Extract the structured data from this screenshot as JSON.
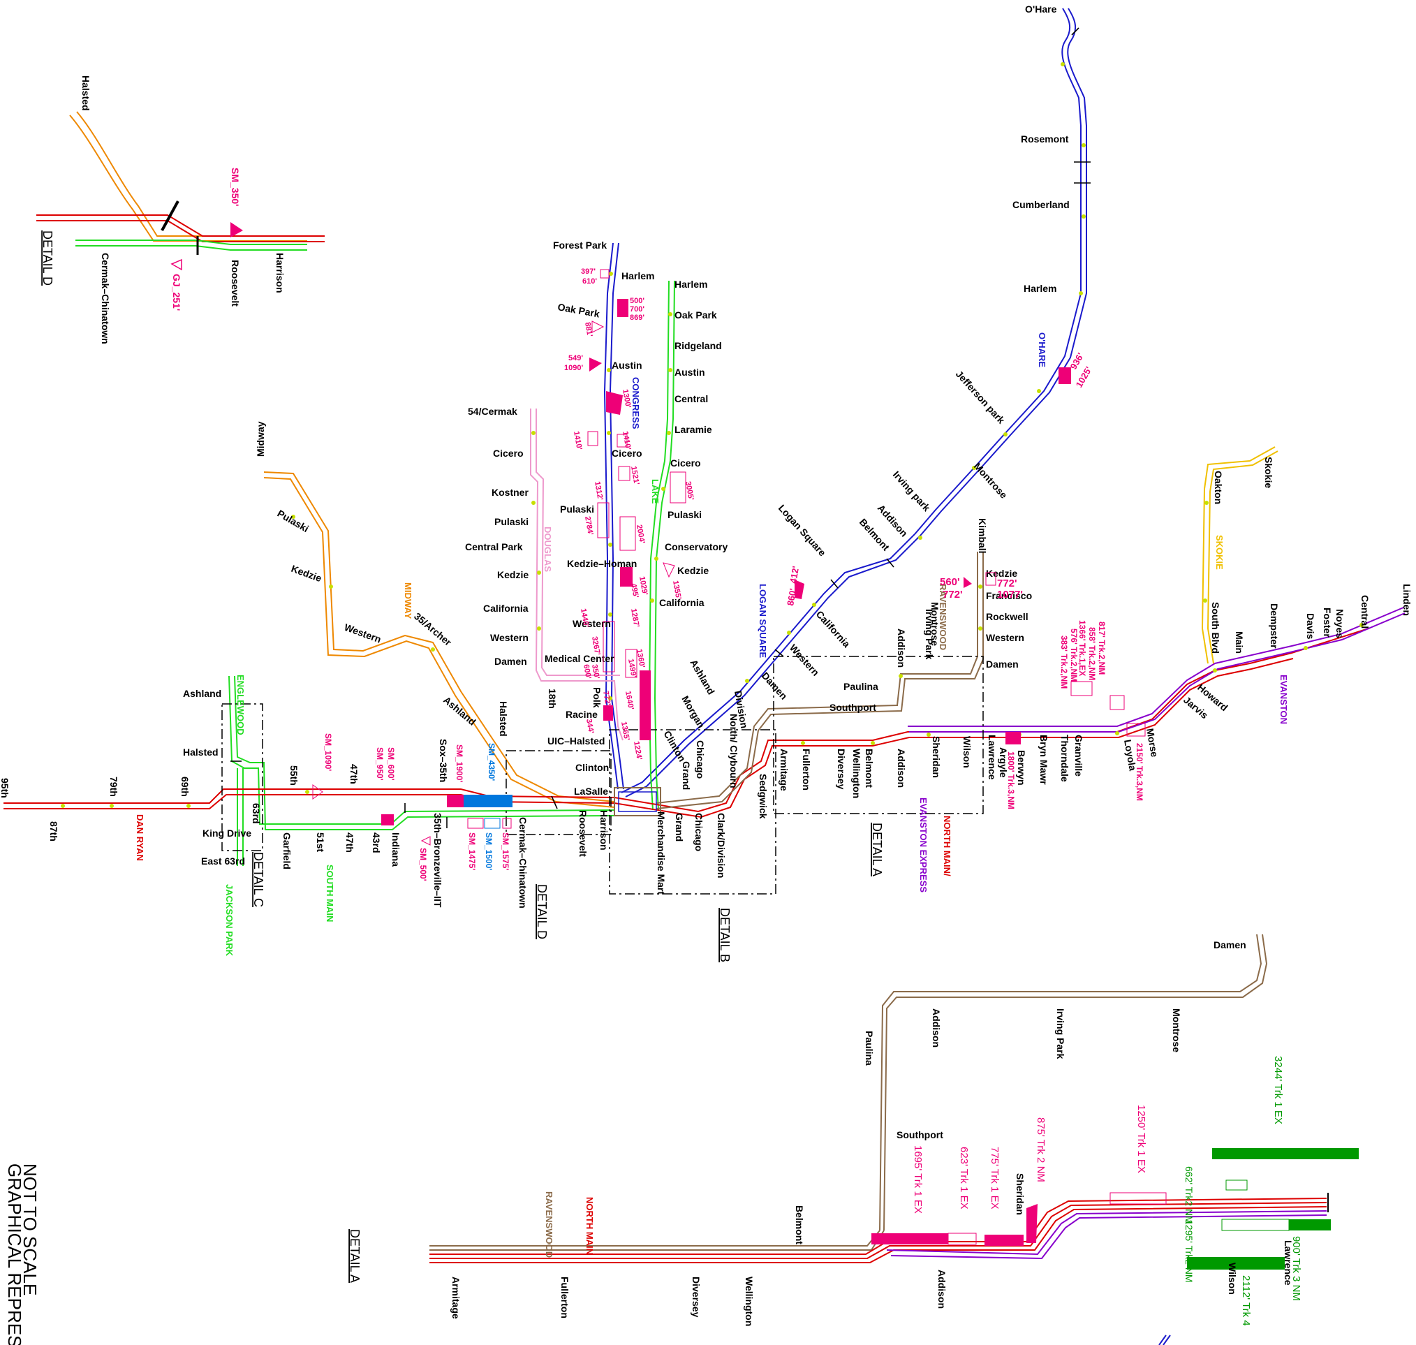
{
  "colors": {
    "blue": "#1a1acc",
    "green": "#22dd22",
    "red": "#dd0000",
    "pink": "#ee99cc",
    "orange": "#ee8800",
    "brown": "#8b6b4a",
    "purple": "#8800cc",
    "yellow": "#f0c000",
    "magenta": "#ee0077",
    "darkgreen": "#009900",
    "skyblue": "#0077dd"
  },
  "stations": {
    "ohare": "O'Hare",
    "rosemont": "Rosemont",
    "cumberland": "Cumberland",
    "harlem_ohare": "Harlem",
    "jefferson_park": "Jefferson park",
    "montrose_blue": "Montrose",
    "irving_park": "Irving park",
    "addison_blue": "Addison",
    "belmont_blue": "Belmont",
    "logan_square": "Logan Square",
    "california_blue": "California",
    "western_blue": "Western",
    "damen_blue": "Damen",
    "division": "Division",
    "chicago_blue": "Chicago",
    "grand_blue": "Grand",
    "clark_lake_lbl": "Clark/Division",
    "forest_park": "Forest Park",
    "harlem_congress": "Harlem",
    "oak_park_congress": "Oak Park",
    "austin_congress": "Austin",
    "cicero_congress": "Cicero",
    "pulaski_congress": "Pulaski",
    "kedzie_homan": "Kedzie–Homan",
    "western_congress": "Western",
    "medical_center": "Medical Center",
    "racine": "Racine",
    "uic_halsted": "UIC–Halsted",
    "clinton_congress": "Clinton",
    "lasalle": "LaSalle",
    "harlem_lake": "Harlem",
    "oak_park_lake": "Oak Park",
    "ridgeland": "Ridgeland",
    "austin_lake": "Austin",
    "central_lake": "Central",
    "laramie": "Laramie",
    "cicero_lake": "Cicero",
    "pulaski_lake": "Pulaski",
    "conservatory": "Conservatory",
    "kedzie_lake": "Kedzie",
    "california_lake": "California",
    "ashland_lake": "Ashland",
    "morgan": "Morgan",
    "clinton_lake": "Clinton",
    "cermak_54": "54/Cermak",
    "cicero_pink": "Cicero",
    "kostner": "Kostner",
    "pulaski_pink": "Pulaski",
    "central_park": "Central Park",
    "kedzie_pink": "Kedzie",
    "california_pink": "California",
    "western_pink": "Western",
    "damen_pink": "Damen",
    "eighteenth": "18th",
    "polk": "Polk",
    "midway": "Midway",
    "pulaski_orange": "Pulaski",
    "kedzie_orange": "Kedzie",
    "western_orange": "Western",
    "archer": "35/Archer",
    "ashland_orange": "Ashland",
    "halsted_orange": "Halsted",
    "ashland_green": "Ashland",
    "halsted_green": "Halsted",
    "king_drive": "King Drive",
    "east_63rd": "East 63rd",
    "sixtythird": "63rd",
    "garfield": "Garfield",
    "fiftyfirst": "51st",
    "fortyseventh_g": "47th",
    "fortythird": "43rd",
    "indiana": "Indiana",
    "bronzeville": "35th–Bronzeville–IIT",
    "cermak_chinatown": "Cermak–Chinatown",
    "roosevelt": "Roosevelt",
    "harrison": "Harrison",
    "ninetyfifth": "95th",
    "eightyseventh": "87th",
    "seventyninth": "79th",
    "sixtyninth": "69th",
    "fiftyfifth": "55th",
    "fortyseventh_r": "47th",
    "sox": "Sox–35th",
    "merchandise_mart": "Merchandise Mart",
    "grand_red": "Grand",
    "chicago_red": "Chicago",
    "clark_division": "Clark/Division",
    "sedgwick": "Sedgwick",
    "armitage": "Armitage",
    "fullerton": "Fullerton",
    "diversey": "Diversey",
    "wellington": "Wellington",
    "belmont": "Belmont",
    "addison": "Addison",
    "sheridan": "Sheridan",
    "wilson": "Wilson",
    "lawrence": "Lawrence",
    "argyle": "Argyle",
    "berwyn": "Berwyn",
    "bryn_mawr": "Bryn Mawr",
    "thorndale": "Thorndale",
    "granville": "Granville",
    "loyola": "Loyola",
    "morse": "Morse",
    "jarvis": "Jarvis",
    "howard": "Howard",
    "north_clybourn": "North/ Clybourn",
    "paulina": "Paulina",
    "southport": "Southport",
    "irving_park_brown": "Irving Park",
    "montrose_brown": "Montrose",
    "addison_brown": "Addison",
    "kimball": "Kimball",
    "kedzie_brown": "Kedzie",
    "francisco": "Francisco",
    "rockwell": "Rockwell",
    "western_brown": "Western",
    "damen_brown": "Damen",
    "linden": "Linden",
    "central_p": "Central",
    "noyes": "Noyes",
    "foster": "Foster",
    "davis": "Davis",
    "dempster": "Dempster",
    "main": "Main",
    "south_blvd": "South Blvd",
    "oakton": "Oakton",
    "skokie": "Skokie",
    "halsted_d": "Halsted",
    "cermak_chinatown_d": "Cermak–Chinatown",
    "roosevelt_d": "Roosevelt",
    "harrison_d": "Harrison",
    "damen_a": "Damen",
    "addison_a": "Addison",
    "irving_park_a": "Irving Park",
    "montrose_a": "Montrose",
    "paulina_a": "Paulina",
    "southport_a": "Southport",
    "belmont_a": "Belmont",
    "sheridan_a": "Sheridan",
    "armitage_a": "Armitage",
    "fullerton_a": "Fullerton",
    "diversey_a": "Diversey",
    "wellington_a": "Wellington",
    "addison_a2": "Addison",
    "wilson_a": "Wilson",
    "lawrence_a": "Lawrence"
  },
  "line_labels": {
    "ohare": "O'HARE",
    "congress": "CONGRESS",
    "lake": "LAKE",
    "douglas": "DOUGLAS",
    "midway": "MIDWAY",
    "englewood": "ENGLEWOOD",
    "jackson_park": "JACKSON PARK",
    "south_main": "SOUTH MAIN",
    "dan_ryan": "DAN RYAN",
    "logan_square": "LOGAN SQUARE",
    "ravenswood": "RAVENSWOOD",
    "skokie": "SKOKIE",
    "evanston": "EVANSTON",
    "north_main": "NORTH MAIN/",
    "evanston_express": "EVANSTON EXPRESS",
    "ravenswood_a": "RAVENSWOOD",
    "north_main_a": "NORTH MAIN"
  },
  "slow_zones": {
    "sm_350": "SM_350'",
    "gj_251": "GJ_251'",
    "sm_1090": "SM_1090'",
    "sm_600": "SM_600'",
    "sm_950": "SM_950'",
    "sm_1900": "SM_1900'",
    "sm_4350": "SM_4350'",
    "sm_1475": "SM_1475'",
    "sm_1500": "SM_1500'",
    "sm_1575": "SM_1575'",
    "sm_500": "SM_500'",
    "c1": "397'",
    "c2": "610'",
    "c3": "500'",
    "c4": "700'",
    "c5": "869'",
    "c6": "881'",
    "c7": "549'",
    "c8": "1090'",
    "c9": "1300'",
    "c10": "1410'",
    "c11": "1410'",
    "c12": "1521'",
    "c13": "1312'",
    "c14": "2784'",
    "c15": "2004'",
    "c16": "495'",
    "c17": "1029'",
    "c18": "1287'",
    "c19": "1440'",
    "c20": "3267'",
    "c21": "600'",
    "c22": "350'",
    "c23": "772'",
    "c24": "344'",
    "c25": "1360'",
    "c26": "1499'",
    "c27": "1640'",
    "c28": "1365'",
    "c29": "1224'",
    "c30": "3005'",
    "c31": "1355'",
    "o1": "936'",
    "o2": "1025'",
    "l1": "412'",
    "l2": "860'",
    "k1": "560'",
    "k2": "772'",
    "k3": "772'",
    "k4": "1077'",
    "n1": "817' Trk.2,NM",
    "n2": "858' Trk.2,NM",
    "n3": "1366' Trk.1,EX",
    "n4": "576' Trk.2,NM",
    "n5": "383' Trk.2,NM",
    "n6": "2150' Trk.3,NM",
    "n7": "1800' Trk.3,NM",
    "a1": "1695' Trk 1 EX",
    "a2": "623' Trk 1 EX",
    "a3": "775' Trk 1 EX",
    "a4": "875' Trk 2 NM",
    "a5": "1250' Trk 1 EX",
    "a6": "3244' Trk 1 EX",
    "a7": "662' Trk2 NM",
    "a8": "1295' Trk2 NM",
    "a9": "900' Trk 3 NM",
    "a10": "2112' Trk 4"
  },
  "details": {
    "a": "DETAIL A",
    "b": "DETAIL B",
    "c": "DETAIL C",
    "d": "DETAIL D",
    "a_bottom": "DETAIL A",
    "d_top": "DETAIL D"
  },
  "notes": {
    "line1": "NOT TO SCALE",
    "line2": "GRAPHICAL REPRES"
  }
}
